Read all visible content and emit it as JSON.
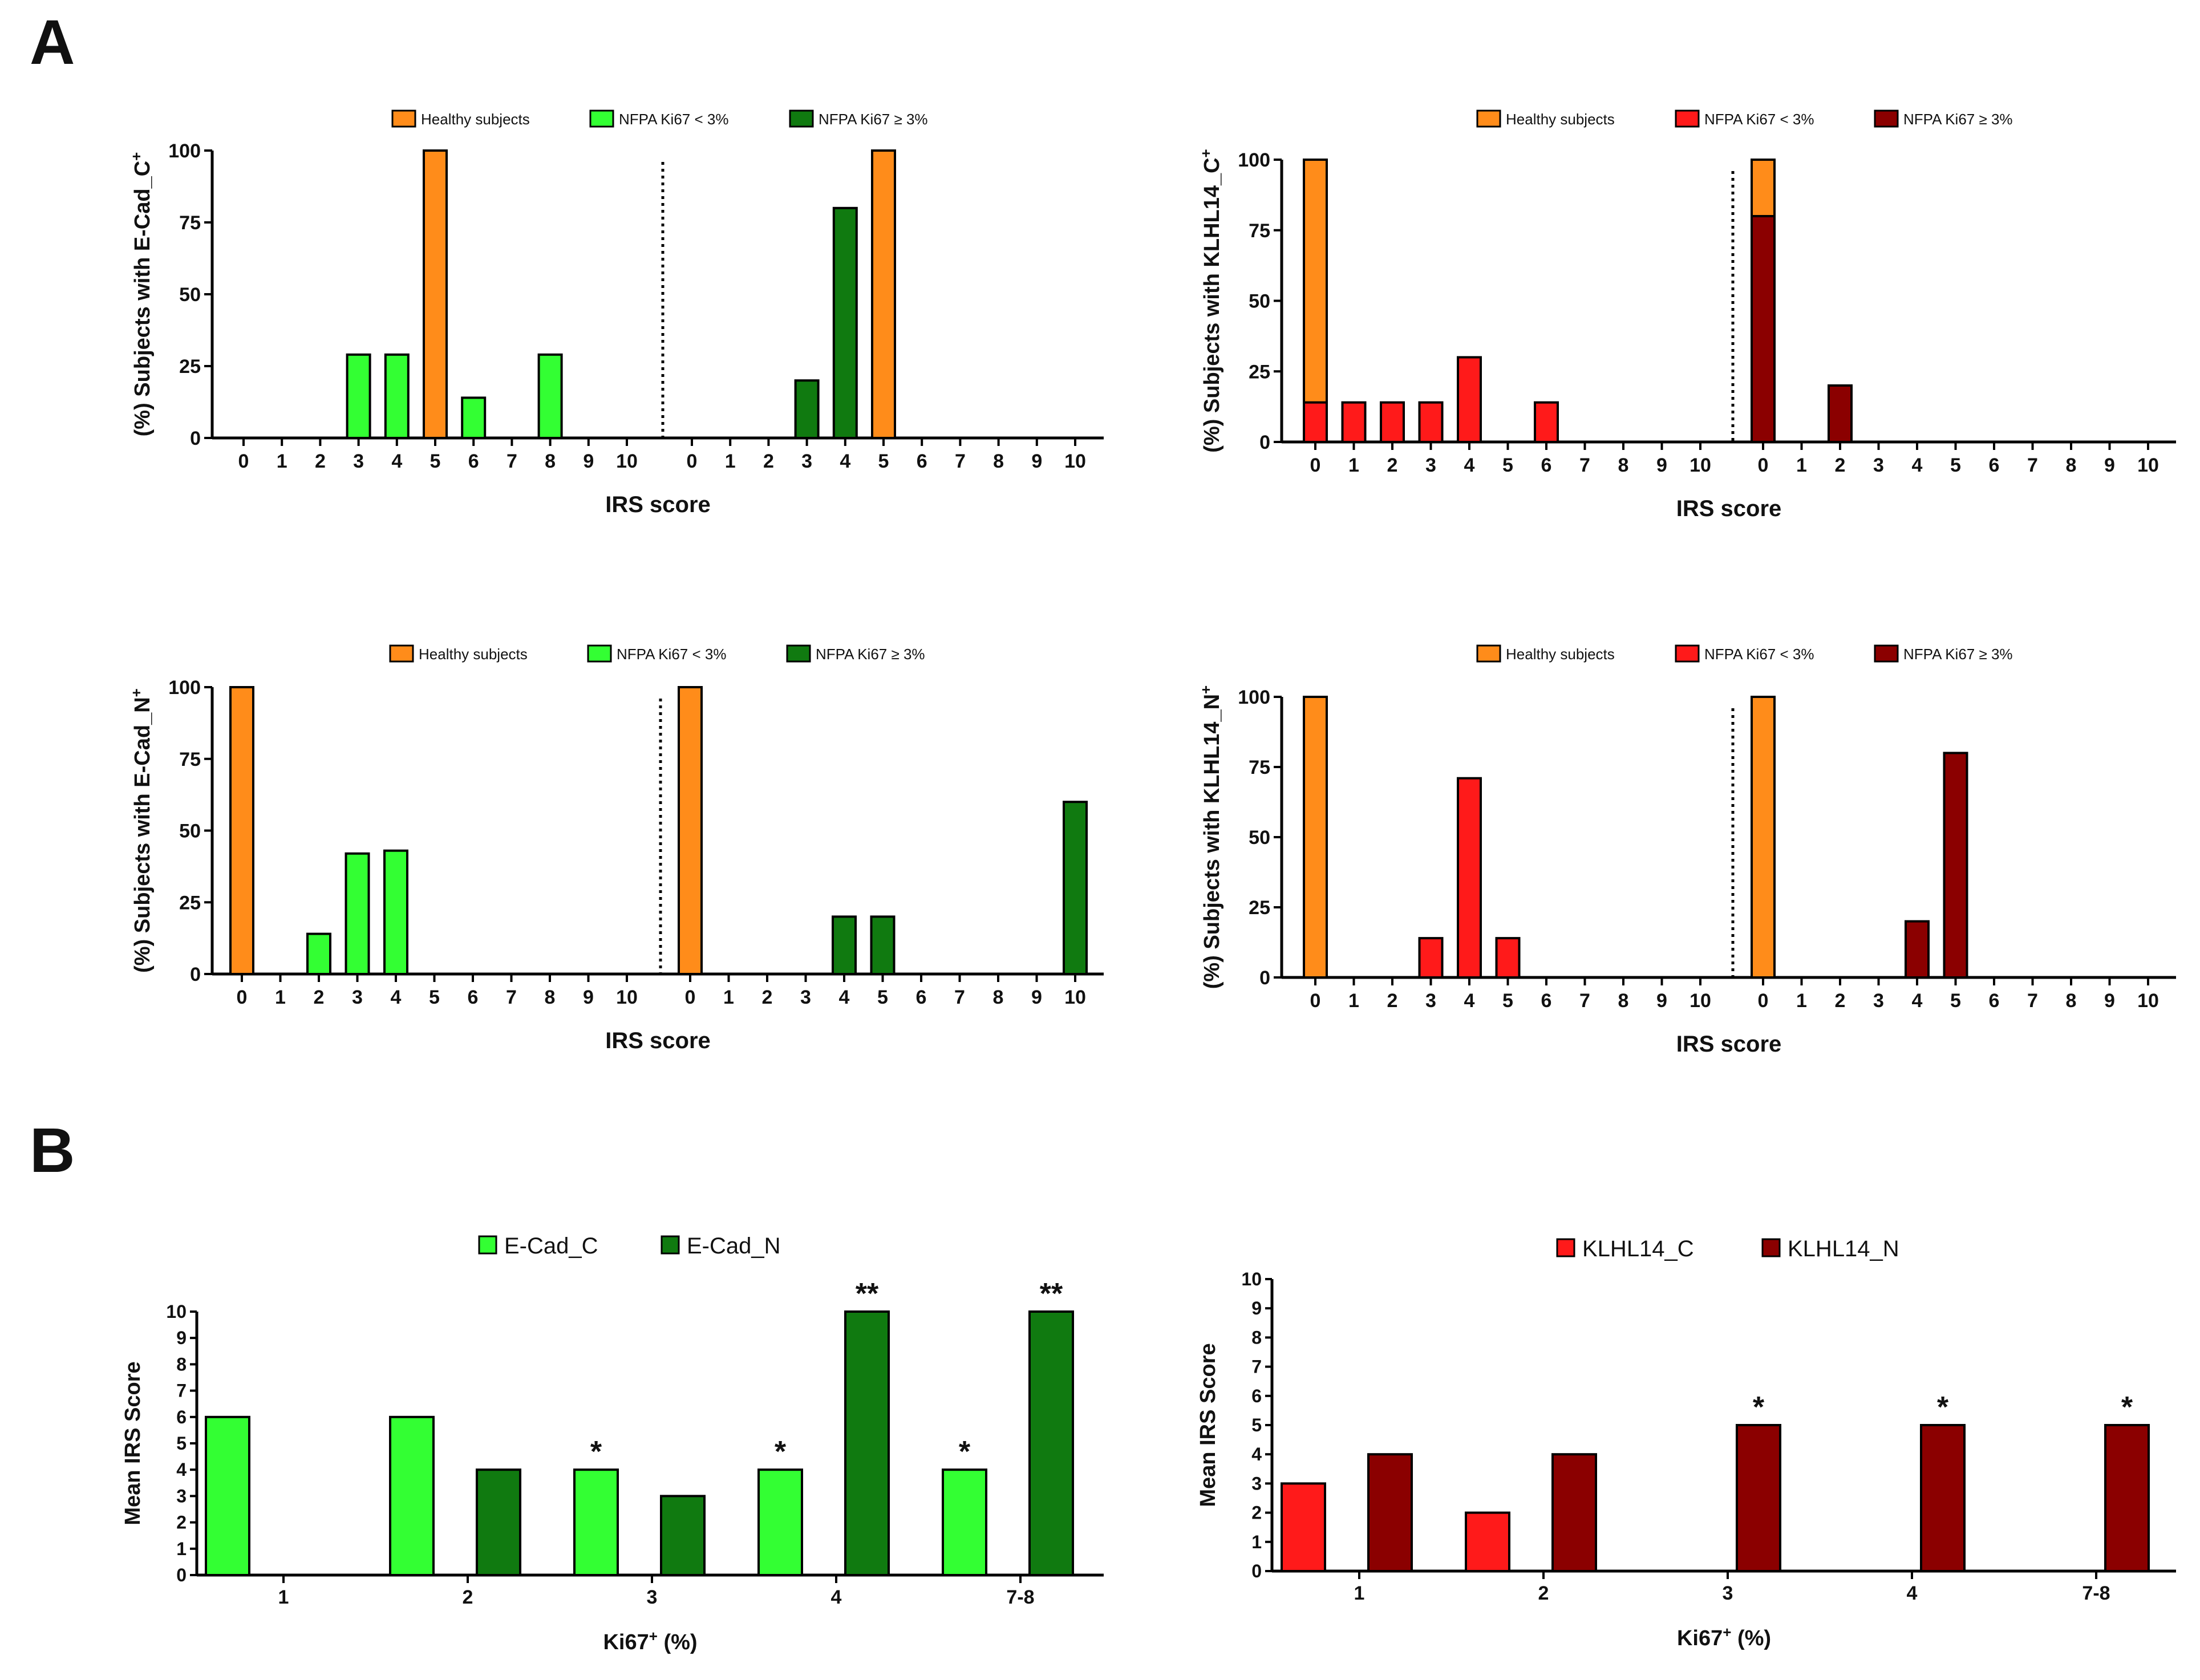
{
  "panel_labels": {
    "a": "A",
    "b": "B"
  },
  "colors": {
    "healthy": "#FF8C1A",
    "ecad_low": "#33FF33",
    "ecad_high": "#107A10",
    "klhl_low": "#FF1A1A",
    "klhl_high": "#8B0000",
    "axis": "#000000"
  },
  "chart_data": [
    {
      "id": "a1",
      "type": "bar",
      "title": "",
      "ylabel": "(%) Subjects with E-Cad_C",
      "ylabel_sup": "+",
      "xlabel": "IRS score",
      "ylim": [
        0,
        100
      ],
      "yticks": [
        "0",
        "25",
        "50",
        "75",
        "100"
      ],
      "legend": [
        {
          "label": "Healthy subjects",
          "color": "healthy"
        },
        {
          "label": "NFPA Ki67 < 3%",
          "color": "ecad_low"
        },
        {
          "label": "NFPA Ki67 ≥ 3%",
          "color": "ecad_high"
        }
      ],
      "groups": [
        {
          "categories": [
            "0",
            "1",
            "2",
            "3",
            "4",
            "5",
            "6",
            "7",
            "8",
            "9",
            "10"
          ],
          "bars": [
            {
              "index": 3,
              "value": 29,
              "color": "ecad_low"
            },
            {
              "index": 4,
              "value": 29,
              "color": "ecad_low"
            },
            {
              "index": 5,
              "value": 100,
              "color": "healthy"
            },
            {
              "index": 6,
              "value": 14,
              "color": "ecad_low"
            },
            {
              "index": 8,
              "value": 29,
              "color": "ecad_low"
            }
          ]
        },
        {
          "categories": [
            "0",
            "1",
            "2",
            "3",
            "4",
            "5",
            "6",
            "7",
            "8",
            "9",
            "10"
          ],
          "bars": [
            {
              "index": 3,
              "value": 20,
              "color": "ecad_high"
            },
            {
              "index": 4,
              "value": 80,
              "color": "ecad_high"
            },
            {
              "index": 5,
              "value": 100,
              "color": "healthy"
            }
          ]
        }
      ]
    },
    {
      "id": "a2",
      "type": "bar",
      "title": "",
      "ylabel": "(%) Subjects with KLHL14_C",
      "ylabel_sup": "+",
      "xlabel": "IRS score",
      "ylim": [
        0,
        100
      ],
      "yticks": [
        "0",
        "25",
        "50",
        "75",
        "100"
      ],
      "legend": [
        {
          "label": "Healthy subjects",
          "color": "healthy"
        },
        {
          "label": "NFPA Ki67 < 3%",
          "color": "klhl_low"
        },
        {
          "label": "NFPA Ki67 ≥ 3%",
          "color": "klhl_high"
        }
      ],
      "groups": [
        {
          "categories": [
            "0",
            "1",
            "2",
            "3",
            "4",
            "5",
            "6",
            "7",
            "8",
            "9",
            "10"
          ],
          "bars": [
            {
              "index": 0,
              "value": 100,
              "color": "healthy"
            },
            {
              "index": 0,
              "value": 14,
              "color": "klhl_low"
            },
            {
              "index": 1,
              "value": 14,
              "color": "klhl_low"
            },
            {
              "index": 2,
              "value": 14,
              "color": "klhl_low"
            },
            {
              "index": 3,
              "value": 14,
              "color": "klhl_low"
            },
            {
              "index": 4,
              "value": 30,
              "color": "klhl_low"
            },
            {
              "index": 6,
              "value": 14,
              "color": "klhl_low"
            }
          ]
        },
        {
          "categories": [
            "0",
            "1",
            "2",
            "3",
            "4",
            "5",
            "6",
            "7",
            "8",
            "9",
            "10"
          ],
          "bars": [
            {
              "index": 0,
              "value": 100,
              "color": "healthy"
            },
            {
              "index": 0,
              "value": 80,
              "color": "klhl_high"
            },
            {
              "index": 2,
              "value": 20,
              "color": "klhl_high"
            }
          ]
        }
      ]
    },
    {
      "id": "a3",
      "type": "bar",
      "title": "",
      "ylabel": "(%) Subjects with E-Cad_N",
      "ylabel_sup": "+",
      "xlabel": "IRS score",
      "ylim": [
        0,
        100
      ],
      "yticks": [
        "0",
        "25",
        "50",
        "75",
        "100"
      ],
      "legend": [
        {
          "label": "Healthy subjects",
          "color": "healthy"
        },
        {
          "label": "NFPA Ki67 < 3%",
          "color": "ecad_low"
        },
        {
          "label": "NFPA Ki67 ≥ 3%",
          "color": "ecad_high"
        }
      ],
      "groups": [
        {
          "categories": [
            "0",
            "1",
            "2",
            "3",
            "4",
            "5",
            "6",
            "7",
            "8",
            "9",
            "10"
          ],
          "bars": [
            {
              "index": 0,
              "value": 100,
              "color": "healthy"
            },
            {
              "index": 2,
              "value": 14,
              "color": "ecad_low"
            },
            {
              "index": 3,
              "value": 42,
              "color": "ecad_low"
            },
            {
              "index": 4,
              "value": 43,
              "color": "ecad_low"
            }
          ]
        },
        {
          "categories": [
            "0",
            "1",
            "2",
            "3",
            "4",
            "5",
            "6",
            "7",
            "8",
            "9",
            "10"
          ],
          "bars": [
            {
              "index": 0,
              "value": 100,
              "color": "healthy"
            },
            {
              "index": 4,
              "value": 20,
              "color": "ecad_high"
            },
            {
              "index": 5,
              "value": 20,
              "color": "ecad_high"
            },
            {
              "index": 10,
              "value": 60,
              "color": "ecad_high"
            }
          ]
        }
      ]
    },
    {
      "id": "a4",
      "type": "bar",
      "title": "",
      "ylabel": "(%) Subjects with KLHL14_N",
      "ylabel_sup": "+",
      "xlabel": "IRS score",
      "ylim": [
        0,
        100
      ],
      "yticks": [
        "0",
        "25",
        "50",
        "75",
        "100"
      ],
      "legend": [
        {
          "label": "Healthy subjects",
          "color": "healthy"
        },
        {
          "label": "NFPA Ki67 < 3%",
          "color": "klhl_low"
        },
        {
          "label": "NFPA Ki67 ≥ 3%",
          "color": "klhl_high"
        }
      ],
      "groups": [
        {
          "categories": [
            "0",
            "1",
            "2",
            "3",
            "4",
            "5",
            "6",
            "7",
            "8",
            "9",
            "10"
          ],
          "bars": [
            {
              "index": 0,
              "value": 100,
              "color": "healthy"
            },
            {
              "index": 3,
              "value": 14,
              "color": "klhl_low"
            },
            {
              "index": 4,
              "value": 71,
              "color": "klhl_low"
            },
            {
              "index": 5,
              "value": 14,
              "color": "klhl_low"
            }
          ]
        },
        {
          "categories": [
            "0",
            "1",
            "2",
            "3",
            "4",
            "5",
            "6",
            "7",
            "8",
            "9",
            "10"
          ],
          "bars": [
            {
              "index": 0,
              "value": 100,
              "color": "healthy"
            },
            {
              "index": 4,
              "value": 20,
              "color": "klhl_high"
            },
            {
              "index": 5,
              "value": 80,
              "color": "klhl_high"
            }
          ]
        }
      ]
    },
    {
      "id": "b1",
      "type": "bar",
      "title": "",
      "ylabel": "Mean IRS Score",
      "xlabel": "Ki67",
      "xlabel_sup": "+",
      "xlabel_suffix": " (%)",
      "ylim": [
        0,
        10
      ],
      "yticks": [
        "0",
        "1",
        "2",
        "3",
        "4",
        "5",
        "6",
        "7",
        "8",
        "9",
        "10"
      ],
      "categories": [
        "1",
        "2",
        "3",
        "4",
        "7-8"
      ],
      "series": [
        {
          "name": "E-Cad_C",
          "color": "ecad_low",
          "values": [
            6,
            6,
            4,
            4,
            4
          ],
          "stars": [
            "",
            "",
            "*",
            "*",
            "*"
          ]
        },
        {
          "name": "E-Cad_N",
          "color": "ecad_high",
          "values": [
            0,
            4,
            3,
            10,
            10
          ],
          "stars": [
            "",
            "",
            "",
            "**",
            "**"
          ]
        }
      ]
    },
    {
      "id": "b2",
      "type": "bar",
      "title": "",
      "ylabel": "Mean IRS Score",
      "xlabel": "Ki67",
      "xlabel_sup": "+",
      "xlabel_suffix": " (%)",
      "ylim": [
        0,
        10
      ],
      "yticks": [
        "0",
        "1",
        "2",
        "3",
        "4",
        "5",
        "6",
        "7",
        "8",
        "9",
        "10"
      ],
      "categories": [
        "1",
        "2",
        "3",
        "4",
        "7-8"
      ],
      "series": [
        {
          "name": "KLHL14_C",
          "color": "klhl_low",
          "values": [
            3,
            2,
            0,
            0,
            0
          ],
          "stars": [
            "",
            "",
            "",
            "",
            ""
          ]
        },
        {
          "name": "KLHL14_N",
          "color": "klhl_high",
          "values": [
            4,
            4,
            5,
            5,
            5
          ],
          "stars": [
            "",
            "",
            "*",
            "*",
            "*"
          ]
        }
      ]
    }
  ]
}
